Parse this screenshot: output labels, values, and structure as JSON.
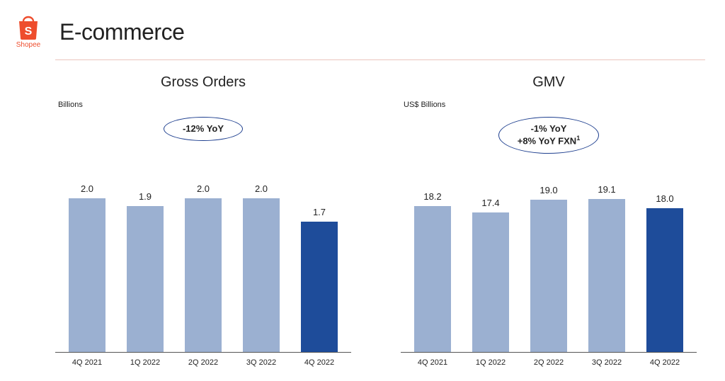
{
  "brand": {
    "name": "Shopee",
    "logo_color": "#ee4d2d"
  },
  "page_title": "E-commerce",
  "divider_color": "#eac5bd",
  "charts": [
    {
      "id": "gross-orders",
      "title": "Gross Orders",
      "unit": "Billions",
      "callout_lines": [
        "-12% YoY"
      ],
      "callout_border": "#1e3f8f",
      "type": "bar",
      "categories": [
        "4Q 2021",
        "1Q 2022",
        "2Q 2022",
        "3Q 2022",
        "4Q 2022"
      ],
      "values": [
        2.0,
        1.9,
        2.0,
        2.0,
        1.7
      ],
      "value_labels": [
        "2.0",
        "1.9",
        "2.0",
        "2.0",
        "1.7"
      ],
      "bar_colors": [
        "#9bb0d1",
        "#9bb0d1",
        "#9bb0d1",
        "#9bb0d1",
        "#1e4c9a"
      ],
      "ylim": [
        0,
        2.4
      ],
      "bar_width_ratio": 0.64,
      "label_fontsize": 13,
      "tick_fontsize": 11,
      "axis_color": "#555555",
      "background_color": "#ffffff"
    },
    {
      "id": "gmv",
      "title": "GMV",
      "unit": "US$ Billions",
      "callout_lines": [
        "-1% YoY",
        "+8% YoY FXN<sup>1</sup>"
      ],
      "callout_border": "#1e3f8f",
      "type": "bar",
      "categories": [
        "4Q 2021",
        "1Q 2022",
        "2Q 2022",
        "3Q 2022",
        "4Q 2022"
      ],
      "values": [
        18.2,
        17.4,
        19.0,
        19.1,
        18.0
      ],
      "value_labels": [
        "18.2",
        "17.4",
        "19.0",
        "19.1",
        "18.0"
      ],
      "bar_colors": [
        "#9bb0d1",
        "#9bb0d1",
        "#9bb0d1",
        "#9bb0d1",
        "#1e4c9a"
      ],
      "ylim": [
        0,
        23.0
      ],
      "bar_width_ratio": 0.64,
      "label_fontsize": 13,
      "tick_fontsize": 11,
      "axis_color": "#555555",
      "background_color": "#ffffff"
    }
  ]
}
